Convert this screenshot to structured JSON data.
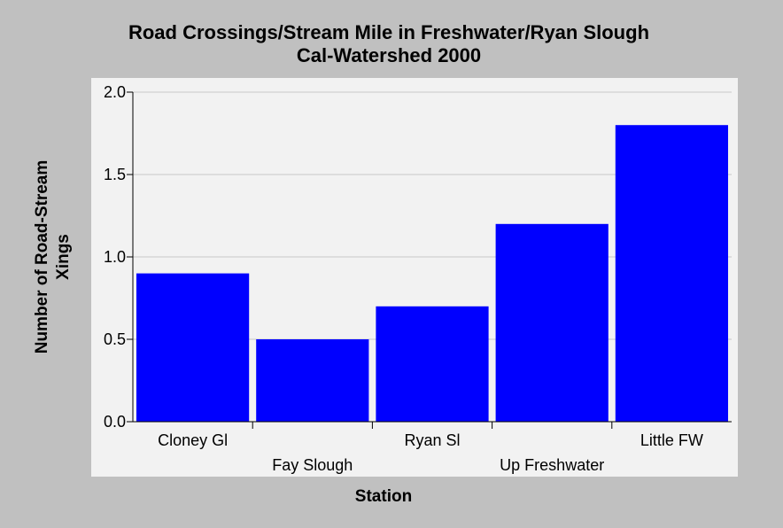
{
  "chart_data": {
    "type": "bar",
    "title": "Road Crossings/Stream Mile in Freshwater/Ryan Slough",
    "subtitle": "Cal-Watershed 2000",
    "xlabel": "Station",
    "ylabel": [
      "Number of Road-Stream",
      "Xings"
    ],
    "categories": [
      "Cloney Gl",
      "Fay Slough",
      "Ryan Sl",
      "Up Freshwater",
      "Little FW"
    ],
    "values": [
      0.9,
      0.5,
      0.7,
      1.2,
      1.8
    ],
    "ylim": [
      0,
      2.0
    ],
    "yticks": [
      "0.0",
      "0.5",
      "1.0",
      "1.5",
      "2.0"
    ],
    "grid": true,
    "bar_color": "#0000ff",
    "plot_background": "#f2f2f2",
    "page_background": "#c0c0c0"
  }
}
